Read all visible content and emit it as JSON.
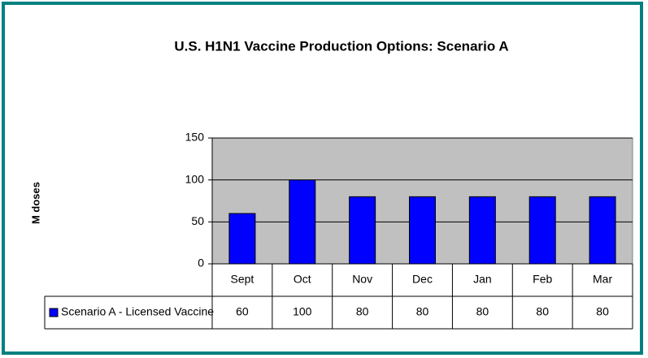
{
  "chart_data": {
    "type": "bar",
    "title": "U.S. H1N1 Vaccine Production Options: Scenario A",
    "y_label": "M doses",
    "categories": [
      "Sept",
      "Oct",
      "Nov",
      "Dec",
      "Jan",
      "Feb",
      "Mar"
    ],
    "series": [
      {
        "name": "Scenario A - Licensed Vaccine",
        "color": "#0000ff",
        "values": [
          60,
          100,
          80,
          80,
          80,
          80,
          80
        ]
      }
    ],
    "ylim": [
      0,
      150
    ],
    "yticks": [
      0,
      50,
      100,
      150
    ],
    "grid": true
  }
}
